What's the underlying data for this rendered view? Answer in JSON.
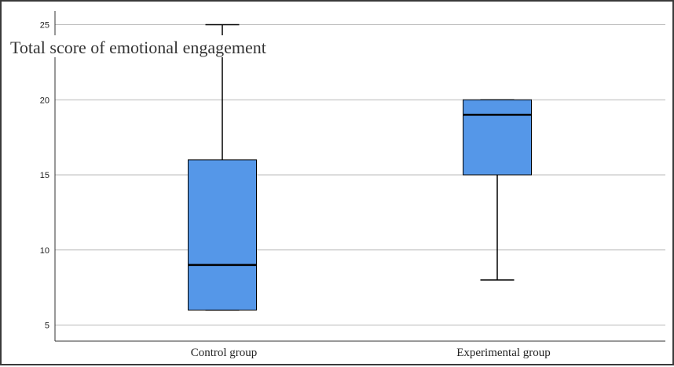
{
  "chart_data": {
    "type": "boxplot",
    "title": "Total score of emotional engagement",
    "xlabel": "",
    "ylabel": "Total score of emotional engagement",
    "ylim": [
      4,
      26
    ],
    "yticks": [
      5,
      10,
      15,
      20,
      25
    ],
    "grid": true,
    "categories": [
      "Control group",
      "Experimental group"
    ],
    "boxes": [
      {
        "name": "Control group",
        "min": 6,
        "q1": 6,
        "median": 9,
        "q3": 16,
        "max": 25
      },
      {
        "name": "Experimental group",
        "min": 8,
        "q1": 15,
        "median": 19,
        "q3": 20,
        "max": 20
      }
    ],
    "colors": {
      "box_fill": "#5597e8",
      "grid": "#b8b8b8",
      "axis": "#333333",
      "line": "#000000"
    }
  }
}
